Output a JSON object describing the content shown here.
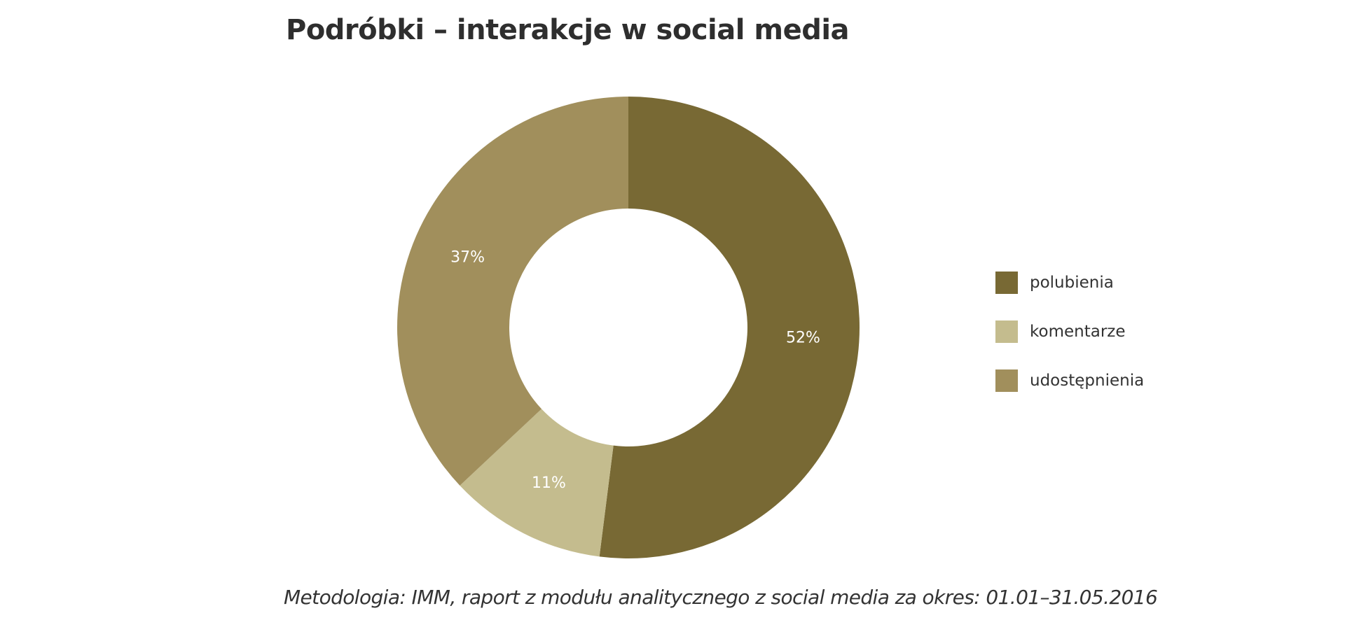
{
  "chart_data": {
    "type": "pie",
    "title": "Podróbki – interakcje w social media",
    "donut": true,
    "categories": [
      "polubienia",
      "komentarze",
      "udostępnienia"
    ],
    "values": [
      52,
      11,
      37
    ],
    "value_labels": [
      "52%",
      "11%",
      "37%"
    ],
    "colors": [
      "#786934",
      "#c4bc8e",
      "#a18f5c"
    ],
    "legend_position": "right",
    "label_color": "#ffffff",
    "footnote": "Metodologia: IMM, raport z modułu analitycznego z social media za okres: 01.01–31.05.2016"
  }
}
